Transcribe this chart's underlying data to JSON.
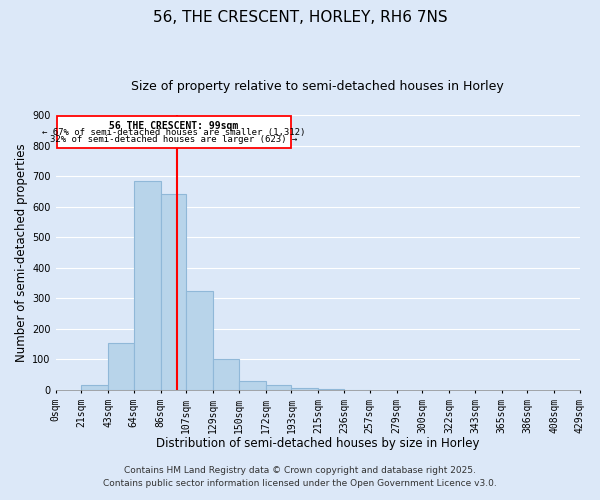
{
  "title": "56, THE CRESCENT, HORLEY, RH6 7NS",
  "subtitle": "Size of property relative to semi-detached houses in Horley",
  "xlabel": "Distribution of semi-detached houses by size in Horley",
  "ylabel": "Number of semi-detached properties",
  "bar_color": "#b8d4ea",
  "bar_edge_color": "#90b8d8",
  "background_color": "#dce8f8",
  "grid_color": "#ffffff",
  "red_line_x": 99,
  "annotation_title": "56 THE CRESCENT: 99sqm",
  "annotation_line1": "← 67% of semi-detached houses are smaller (1,312)",
  "annotation_line2": "32% of semi-detached houses are larger (623) →",
  "bin_edges": [
    0,
    21,
    43,
    64,
    86,
    107,
    129,
    150,
    172,
    193,
    215,
    236,
    257,
    279,
    300,
    322,
    343,
    365,
    386,
    408,
    429
  ],
  "bar_heights": [
    0,
    15,
    155,
    685,
    640,
    325,
    100,
    30,
    15,
    5,
    2,
    1,
    0,
    0,
    0,
    0,
    0,
    0,
    0,
    0
  ],
  "ylim": [
    0,
    900
  ],
  "yticks": [
    0,
    100,
    200,
    300,
    400,
    500,
    600,
    700,
    800,
    900
  ],
  "footer_line1": "Contains HM Land Registry data © Crown copyright and database right 2025.",
  "footer_line2": "Contains public sector information licensed under the Open Government Licence v3.0.",
  "title_fontsize": 11,
  "subtitle_fontsize": 9,
  "axis_label_fontsize": 8.5,
  "tick_fontsize": 7,
  "footer_fontsize": 6.5
}
